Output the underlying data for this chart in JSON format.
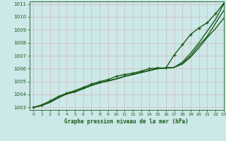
{
  "xlabel": "Graphe pression niveau de la mer (hPa)",
  "xlim": [
    -0.5,
    23
  ],
  "ylim": [
    1002.8,
    1011.2
  ],
  "yticks": [
    1003,
    1004,
    1005,
    1006,
    1007,
    1008,
    1009,
    1010,
    1011
  ],
  "xticks": [
    0,
    1,
    2,
    3,
    4,
    5,
    6,
    7,
    8,
    9,
    10,
    11,
    12,
    13,
    14,
    15,
    16,
    17,
    18,
    19,
    20,
    21,
    22,
    23
  ],
  "bg_color": "#cce8e8",
  "grid_color": "#b8d8d8",
  "line_color": "#1a5c1a",
  "series_smooth": [
    {
      "x": [
        0,
        1,
        2,
        3,
        4,
        5,
        6,
        7,
        8,
        9,
        10,
        11,
        12,
        13,
        14,
        15,
        16,
        17,
        18,
        19,
        20,
        21,
        22,
        23
      ],
      "y": [
        1003.0,
        1003.15,
        1003.4,
        1003.75,
        1004.05,
        1004.2,
        1004.45,
        1004.7,
        1004.9,
        1005.05,
        1005.2,
        1005.4,
        1005.55,
        1005.7,
        1005.85,
        1006.0,
        1006.05,
        1006.1,
        1006.5,
        1007.2,
        1008.0,
        1008.9,
        1009.8,
        1011.0
      ],
      "lw": 1.0
    },
    {
      "x": [
        0,
        1,
        2,
        3,
        4,
        5,
        6,
        7,
        8,
        9,
        10,
        11,
        12,
        13,
        14,
        15,
        16,
        17,
        18,
        19,
        20,
        21,
        22,
        23
      ],
      "y": [
        1003.0,
        1003.15,
        1003.4,
        1003.75,
        1004.05,
        1004.2,
        1004.45,
        1004.7,
        1004.9,
        1005.05,
        1005.2,
        1005.4,
        1005.55,
        1005.7,
        1005.85,
        1006.0,
        1006.05,
        1006.1,
        1006.4,
        1007.0,
        1007.8,
        1008.5,
        1009.5,
        1010.5
      ],
      "lw": 1.0
    },
    {
      "x": [
        0,
        1,
        2,
        3,
        4,
        5,
        6,
        7,
        8,
        9,
        10,
        11,
        12,
        13,
        14,
        15,
        16,
        17,
        18,
        19,
        20,
        21,
        22,
        23
      ],
      "y": [
        1003.0,
        1003.15,
        1003.4,
        1003.75,
        1004.05,
        1004.2,
        1004.45,
        1004.7,
        1004.9,
        1005.05,
        1005.2,
        1005.4,
        1005.55,
        1005.7,
        1005.85,
        1006.0,
        1006.05,
        1006.1,
        1006.35,
        1006.9,
        1007.6,
        1008.4,
        1009.1,
        1009.9
      ],
      "lw": 1.0
    }
  ],
  "series_marker": {
    "x": [
      0,
      1,
      2,
      3,
      4,
      5,
      6,
      7,
      8,
      9,
      10,
      11,
      12,
      13,
      14,
      15,
      16,
      17,
      18,
      19,
      20,
      21,
      22,
      23
    ],
    "y": [
      1003.0,
      1003.2,
      1003.5,
      1003.85,
      1004.1,
      1004.3,
      1004.55,
      1004.8,
      1005.0,
      1005.15,
      1005.4,
      1005.55,
      1005.65,
      1005.8,
      1006.0,
      1006.05,
      1006.05,
      1007.05,
      1007.85,
      1008.65,
      1009.15,
      1009.55,
      1010.25,
      1011.05
    ],
    "lw": 1.0,
    "marker": "+",
    "ms": 3.5,
    "mew": 1.0
  }
}
